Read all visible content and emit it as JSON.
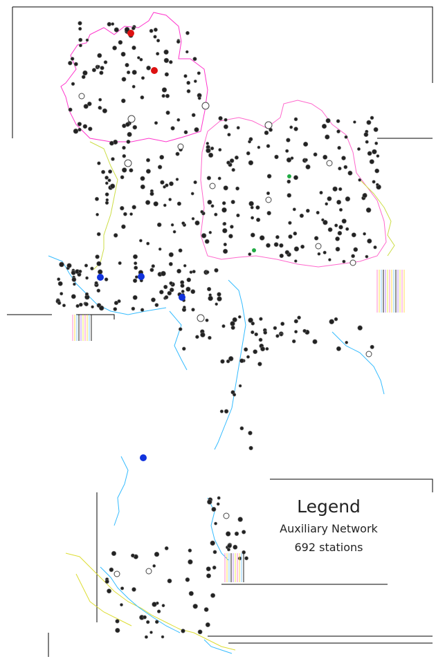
{
  "legend": {
    "title": "Legend",
    "network": "Auxiliary Network",
    "count": "692 stations"
  },
  "colors": {
    "north_region": "#ff33cc",
    "northeast_region": "#ff66cc",
    "central_region": "#ccdd44",
    "coast": "#33bbff",
    "south_region": "#dddd33",
    "station_fill": "#222222",
    "highlight_red": "#dd1111",
    "highlight_blue": "#1133dd",
    "highlight_green": "#22aa44"
  }
}
